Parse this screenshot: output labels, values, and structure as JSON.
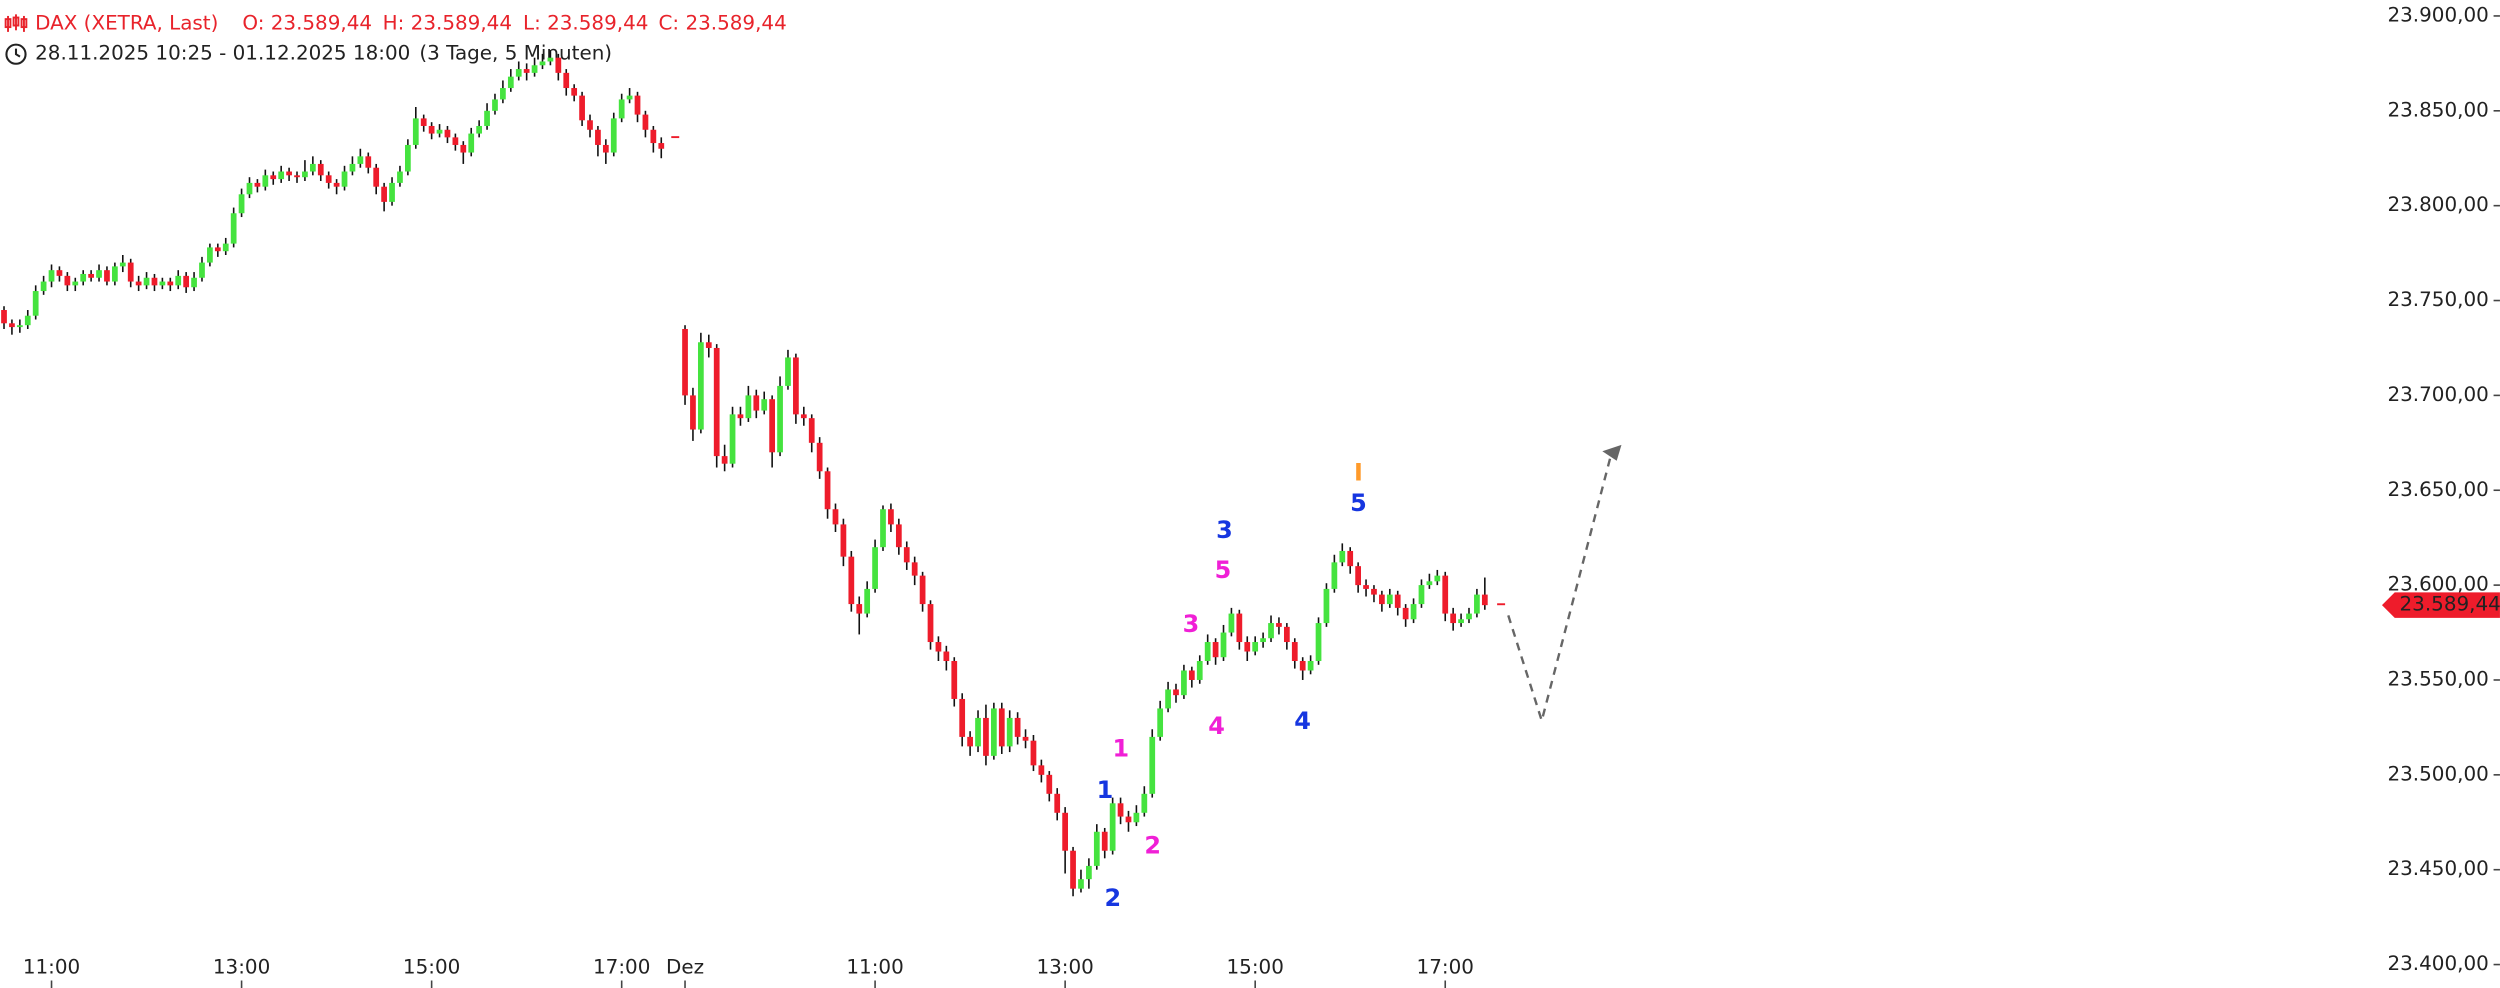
{
  "chart_data": {
    "type": "candlestick",
    "instrument": "DAX (XETRA, Last)",
    "ohlc_header": [
      "O: 23.589,44",
      "H: 23.589,44",
      "L: 23.589,44",
      "C: 23.589,44"
    ],
    "range": "28.11.2025 10:25 - 01.12.2025 18:00",
    "period": "(3 Tage, 5 Minuten)",
    "up_color": "#45e33f",
    "down_color": "#ee1c2b",
    "header_color": "#e8232b",
    "xlim": [
      0.5,
      302.5
    ],
    "xticks": [
      {
        "value": 7,
        "label": "11:00"
      },
      {
        "value": 31,
        "label": "13:00"
      },
      {
        "value": 55,
        "label": "15:00"
      },
      {
        "value": 79,
        "label": "17:00"
      },
      {
        "value": 87,
        "label": "Dez"
      },
      {
        "value": 111,
        "label": "11:00"
      },
      {
        "value": 135,
        "label": "13:00"
      },
      {
        "value": 159,
        "label": "15:00"
      },
      {
        "value": 183,
        "label": "17:00"
      }
    ],
    "ylim": [
      23400,
      23900
    ],
    "yticks": [
      {
        "value": 23400,
        "label": "23.400,00"
      },
      {
        "value": 23450,
        "label": "23.450,00"
      },
      {
        "value": 23500,
        "label": "23.500,00"
      },
      {
        "value": 23550,
        "label": "23.550,00"
      },
      {
        "value": 23600,
        "label": "23.600,00"
      },
      {
        "value": 23650,
        "label": "23.650,00"
      },
      {
        "value": 23700,
        "label": "23.700,00"
      },
      {
        "value": 23750,
        "label": "23.750,00"
      },
      {
        "value": 23800,
        "label": "23.800,00"
      },
      {
        "value": 23850,
        "label": "23.850,00"
      },
      {
        "value": 23900,
        "label": "23.900,00"
      }
    ],
    "last_price": {
      "value": 23589.44,
      "label": "23.589,44"
    },
    "annotations": [
      {
        "text": "1",
        "color": "#f01fd6"
      },
      {
        "text": "2",
        "color": "#f01fd6"
      },
      {
        "text": "3",
        "color": "#f01fd6"
      },
      {
        "text": "4",
        "color": "#f01fd6"
      },
      {
        "text": "5",
        "color": "#f01fd6"
      },
      {
        "text": "1",
        "color": "#1636e0"
      },
      {
        "text": "2",
        "color": "#1636e0"
      },
      {
        "text": "3",
        "color": "#1636e0"
      },
      {
        "text": "4",
        "color": "#1636e0"
      },
      {
        "text": "5",
        "color": "#1636e0"
      },
      {
        "text": "I",
        "color": "#ff9a2a"
      }
    ],
    "x": [
      0,
      1,
      2,
      3,
      4,
      5,
      6,
      7,
      8,
      9,
      10,
      11,
      12,
      13,
      14,
      15,
      16,
      17,
      18,
      19,
      20,
      21,
      22,
      23,
      24,
      25,
      26,
      27,
      28,
      29,
      30,
      31,
      32,
      33,
      34,
      35,
      36,
      37,
      38,
      39,
      40,
      41,
      42,
      43,
      44,
      45,
      46,
      47,
      48,
      49,
      50,
      51,
      52,
      53,
      54,
      55,
      56,
      57,
      58,
      59,
      60,
      61,
      62,
      63,
      64,
      65,
      66,
      67,
      68,
      69,
      70,
      71,
      72,
      73,
      74,
      75,
      76,
      77,
      78,
      79,
      80,
      81,
      82,
      83,
      84,
      87,
      88,
      89,
      90,
      91,
      92,
      93,
      94,
      95,
      96,
      97,
      98,
      99,
      100,
      101,
      102,
      103,
      104,
      105,
      106,
      107,
      108,
      109,
      110,
      111,
      112,
      113,
      114,
      115,
      116,
      117,
      118,
      119,
      120,
      121,
      122,
      123,
      124,
      125,
      126,
      127,
      128,
      129,
      130,
      131,
      132,
      133,
      134,
      135,
      136,
      137,
      138,
      139,
      140,
      141,
      142,
      143,
      144,
      145,
      146,
      147,
      148,
      149,
      150,
      151,
      152,
      153,
      154,
      155,
      156,
      157,
      158,
      159,
      160,
      161,
      162,
      163,
      164,
      165,
      166,
      167,
      168,
      169,
      170,
      171,
      172,
      173,
      174,
      175,
      176,
      177,
      178,
      179,
      180,
      181,
      182,
      183,
      184,
      185,
      186,
      187,
      188
    ],
    "ohlc": [
      [
        23750,
        23752,
        23740,
        23745
      ],
      [
        23745,
        23747,
        23735,
        23738
      ],
      [
        23738,
        23740,
        23732,
        23736
      ],
      [
        23736,
        23740,
        23733,
        23737
      ],
      [
        23737,
        23745,
        23735,
        23742
      ],
      [
        23742,
        23758,
        23740,
        23755
      ],
      [
        23755,
        23763,
        23753,
        23760
      ],
      [
        23760,
        23769,
        23757,
        23766
      ],
      [
        23766,
        23768,
        23760,
        23763
      ],
      [
        23763,
        23765,
        23755,
        23758
      ],
      [
        23758,
        23762,
        23755,
        23760
      ],
      [
        23760,
        23766,
        23758,
        23764
      ],
      [
        23764,
        23766,
        23760,
        23762
      ],
      [
        23762,
        23769,
        23760,
        23766
      ],
      [
        23766,
        23768,
        23758,
        23760
      ],
      [
        23760,
        23770,
        23758,
        23768
      ],
      [
        23768,
        23774,
        23765,
        23770
      ],
      [
        23770,
        23772,
        23757,
        23760
      ],
      [
        23760,
        23763,
        23755,
        23758
      ],
      [
        23758,
        23765,
        23756,
        23762
      ],
      [
        23762,
        23764,
        23755,
        23758
      ],
      [
        23758,
        23762,
        23756,
        23760
      ],
      [
        23760,
        23762,
        23755,
        23758
      ],
      [
        23758,
        23766,
        23756,
        23763
      ],
      [
        23763,
        23765,
        23754,
        23757
      ],
      [
        23757,
        23765,
        23755,
        23762
      ],
      [
        23762,
        23773,
        23760,
        23770
      ],
      [
        23770,
        23780,
        23768,
        23778
      ],
      [
        23778,
        23780,
        23773,
        23776
      ],
      [
        23776,
        23783,
        23774,
        23780
      ],
      [
        23780,
        23799,
        23778,
        23796
      ],
      [
        23796,
        23809,
        23794,
        23806
      ],
      [
        23806,
        23815,
        23804,
        23812
      ],
      [
        23812,
        23814,
        23807,
        23810
      ],
      [
        23810,
        23819,
        23808,
        23816
      ],
      [
        23816,
        23818,
        23811,
        23814
      ],
      [
        23814,
        23821,
        23812,
        23818
      ],
      [
        23818,
        23820,
        23813,
        23816
      ],
      [
        23816,
        23818,
        23812,
        23815
      ],
      [
        23815,
        23824,
        23813,
        23818
      ],
      [
        23818,
        23826,
        23816,
        23822
      ],
      [
        23822,
        23824,
        23813,
        23816
      ],
      [
        23816,
        23818,
        23809,
        23812
      ],
      [
        23812,
        23814,
        23806,
        23810
      ],
      [
        23810,
        23821,
        23808,
        23818
      ],
      [
        23818,
        23826,
        23816,
        23822
      ],
      [
        23822,
        23830,
        23820,
        23826
      ],
      [
        23826,
        23828,
        23817,
        23820
      ],
      [
        23820,
        23822,
        23806,
        23810
      ],
      [
        23810,
        23812,
        23797,
        23802
      ],
      [
        23802,
        23815,
        23800,
        23812
      ],
      [
        23812,
        23821,
        23810,
        23818
      ],
      [
        23818,
        23835,
        23816,
        23832
      ],
      [
        23832,
        23852,
        23830,
        23846
      ],
      [
        23846,
        23848,
        23839,
        23842
      ],
      [
        23842,
        23844,
        23835,
        23838
      ],
      [
        23838,
        23843,
        23836,
        23840
      ],
      [
        23840,
        23842,
        23833,
        23836
      ],
      [
        23836,
        23838,
        23829,
        23832
      ],
      [
        23832,
        23834,
        23822,
        23828
      ],
      [
        23828,
        23841,
        23826,
        23838
      ],
      [
        23838,
        23845,
        23836,
        23842
      ],
      [
        23842,
        23854,
        23840,
        23850
      ],
      [
        23850,
        23859,
        23848,
        23856
      ],
      [
        23856,
        23866,
        23854,
        23862
      ],
      [
        23862,
        23872,
        23860,
        23868
      ],
      [
        23868,
        23876,
        23866,
        23872
      ],
      [
        23872,
        23875,
        23866,
        23870
      ],
      [
        23870,
        23878,
        23868,
        23874
      ],
      [
        23874,
        23880,
        23872,
        23876
      ],
      [
        23876,
        23882,
        23874,
        23878
      ],
      [
        23878,
        23880,
        23866,
        23870
      ],
      [
        23870,
        23872,
        23858,
        23862
      ],
      [
        23862,
        23864,
        23855,
        23858
      ],
      [
        23858,
        23860,
        23842,
        23845
      ],
      [
        23845,
        23848,
        23836,
        23840
      ],
      [
        23840,
        23842,
        23826,
        23832
      ],
      [
        23832,
        23835,
        23822,
        23828
      ],
      [
        23828,
        23849,
        23826,
        23846
      ],
      [
        23846,
        23859,
        23844,
        23856
      ],
      [
        23856,
        23862,
        23854,
        23858
      ],
      [
        23858,
        23860,
        23844,
        23848
      ],
      [
        23848,
        23850,
        23836,
        23840
      ],
      [
        23840,
        23842,
        23828,
        23833
      ],
      [
        23833,
        23836,
        23825,
        23830
      ],
      [
        23735,
        23737,
        23695,
        23700
      ],
      [
        23700,
        23704,
        23676,
        23682
      ],
      [
        23682,
        23733,
        23680,
        23728
      ],
      [
        23728,
        23732,
        23720,
        23725
      ],
      [
        23725,
        23727,
        23662,
        23668
      ],
      [
        23668,
        23674,
        23660,
        23664
      ],
      [
        23664,
        23694,
        23662,
        23690
      ],
      [
        23690,
        23694,
        23684,
        23688
      ],
      [
        23688,
        23705,
        23686,
        23700
      ],
      [
        23700,
        23703,
        23688,
        23692
      ],
      [
        23692,
        23702,
        23690,
        23698
      ],
      [
        23698,
        23700,
        23662,
        23670
      ],
      [
        23670,
        23710,
        23668,
        23705
      ],
      [
        23705,
        23724,
        23703,
        23720
      ],
      [
        23720,
        23722,
        23685,
        23690
      ],
      [
        23690,
        23694,
        23684,
        23688
      ],
      [
        23688,
        23690,
        23670,
        23675
      ],
      [
        23675,
        23678,
        23656,
        23660
      ],
      [
        23660,
        23662,
        23635,
        23640
      ],
      [
        23640,
        23643,
        23628,
        23632
      ],
      [
        23632,
        23635,
        23610,
        23615
      ],
      [
        23615,
        23618,
        23586,
        23590
      ],
      [
        23590,
        23594,
        23574,
        23585
      ],
      [
        23585,
        23602,
        23583,
        23598
      ],
      [
        23598,
        23624,
        23596,
        23620
      ],
      [
        23620,
        23642,
        23618,
        23640
      ],
      [
        23640,
        23643,
        23628,
        23632
      ],
      [
        23632,
        23635,
        23616,
        23620
      ],
      [
        23620,
        23623,
        23608,
        23612
      ],
      [
        23612,
        23615,
        23600,
        23605
      ],
      [
        23605,
        23607,
        23586,
        23590
      ],
      [
        23590,
        23592,
        23566,
        23570
      ],
      [
        23570,
        23573,
        23560,
        23565
      ],
      [
        23565,
        23568,
        23555,
        23560
      ],
      [
        23560,
        23562,
        23536,
        23540
      ],
      [
        23540,
        23543,
        23515,
        23520
      ],
      [
        23520,
        23523,
        23510,
        23515
      ],
      [
        23515,
        23534,
        23512,
        23530
      ],
      [
        23530,
        23537,
        23505,
        23510
      ],
      [
        23510,
        23538,
        23508,
        23535
      ],
      [
        23535,
        23538,
        23511,
        23515
      ],
      [
        23515,
        23534,
        23512,
        23530
      ],
      [
        23530,
        23533,
        23516,
        23520
      ],
      [
        23520,
        23524,
        23514,
        23518
      ],
      [
        23518,
        23521,
        23502,
        23505
      ],
      [
        23505,
        23508,
        23496,
        23500
      ],
      [
        23500,
        23502,
        23486,
        23490
      ],
      [
        23490,
        23493,
        23476,
        23480
      ],
      [
        23480,
        23483,
        23448,
        23460
      ],
      [
        23460,
        23462,
        23436,
        23440
      ],
      [
        23440,
        23450,
        23438,
        23445
      ],
      [
        23445,
        23456,
        23440,
        23452
      ],
      [
        23452,
        23474,
        23450,
        23470
      ],
      [
        23470,
        23472,
        23456,
        23460
      ],
      [
        23460,
        23488,
        23458,
        23485
      ],
      [
        23485,
        23488,
        23474,
        23478
      ],
      [
        23478,
        23481,
        23470,
        23475
      ],
      [
        23475,
        23484,
        23473,
        23480
      ],
      [
        23480,
        23494,
        23478,
        23490
      ],
      [
        23490,
        23524,
        23488,
        23520
      ],
      [
        23520,
        23539,
        23518,
        23535
      ],
      [
        23535,
        23549,
        23533,
        23545
      ],
      [
        23545,
        23548,
        23538,
        23542
      ],
      [
        23542,
        23558,
        23540,
        23555
      ],
      [
        23555,
        23557,
        23546,
        23550
      ],
      [
        23550,
        23563,
        23548,
        23560
      ],
      [
        23560,
        23574,
        23558,
        23570
      ],
      [
        23570,
        23572,
        23558,
        23562
      ],
      [
        23562,
        23579,
        23560,
        23575
      ],
      [
        23575,
        23588,
        23573,
        23585
      ],
      [
        23585,
        23587,
        23566,
        23570
      ],
      [
        23570,
        23573,
        23560,
        23565
      ],
      [
        23565,
        23573,
        23563,
        23570
      ],
      [
        23570,
        23575,
        23567,
        23572
      ],
      [
        23572,
        23584,
        23570,
        23580
      ],
      [
        23580,
        23583,
        23574,
        23578
      ],
      [
        23578,
        23580,
        23566,
        23570
      ],
      [
        23570,
        23572,
        23556,
        23560
      ],
      [
        23560,
        23562,
        23550,
        23555
      ],
      [
        23555,
        23563,
        23553,
        23560
      ],
      [
        23560,
        23583,
        23558,
        23580
      ],
      [
        23580,
        23601,
        23578,
        23598
      ],
      [
        23598,
        23616,
        23596,
        23612
      ],
      [
        23612,
        23622,
        23610,
        23618
      ],
      [
        23618,
        23620,
        23606,
        23610
      ],
      [
        23610,
        23612,
        23596,
        23600
      ],
      [
        23600,
        23603,
        23594,
        23598
      ],
      [
        23598,
        23600,
        23591,
        23595
      ],
      [
        23595,
        23597,
        23586,
        23590
      ],
      [
        23590,
        23598,
        23588,
        23595
      ],
      [
        23595,
        23597,
        23584,
        23588
      ],
      [
        23588,
        23590,
        23578,
        23582
      ],
      [
        23582,
        23593,
        23580,
        23590
      ],
      [
        23590,
        23603,
        23588,
        23600
      ],
      [
        23600,
        23606,
        23598,
        23602
      ],
      [
        23602,
        23608,
        23600,
        23605
      ],
      [
        23605,
        23607,
        23581,
        23585
      ],
      [
        23585,
        23588,
        23576,
        23580
      ],
      [
        23580,
        23585,
        23578,
        23582
      ],
      [
        23582,
        23588,
        23580,
        23585
      ],
      [
        23585,
        23598,
        23583,
        23595
      ],
      [
        23595,
        23604,
        23587,
        23589.44
      ]
    ]
  }
}
